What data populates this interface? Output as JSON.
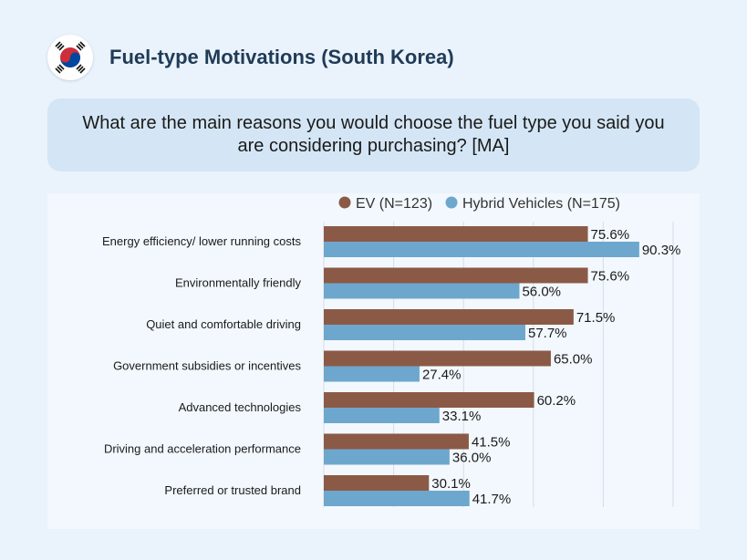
{
  "header": {
    "title": "Fuel-type Motivations (South Korea)",
    "flag_icon": "south-korea-flag-icon"
  },
  "question": {
    "text": "What are the main reasons you would choose the fuel type you said you are considering purchasing? [MA]"
  },
  "colors": {
    "ev": "#8b5a47",
    "hybrid": "#6ea7cd",
    "page_bg": "#eaf3fc",
    "panel_bg": "#f2f8fd",
    "question_bg": "#d4e6f5"
  },
  "chart_data": {
    "type": "bar",
    "orientation": "horizontal",
    "categories": [
      "Energy efficiency/ lower running costs",
      "Environmentally friendly",
      "Quiet and comfortable driving",
      "Government subsidies or incentives",
      "Advanced technologies",
      "Driving and acceleration performance",
      "Preferred or trusted brand"
    ],
    "series": [
      {
        "name": "EV (N=123)",
        "values": [
          75.6,
          75.6,
          71.5,
          65.0,
          60.2,
          41.5,
          30.1
        ],
        "color": "#8b5a47"
      },
      {
        "name": "Hybrid Vehicles (N=175)",
        "values": [
          90.3,
          56.0,
          57.7,
          27.4,
          33.1,
          36.0,
          41.7
        ],
        "color": "#6ea7cd"
      }
    ],
    "value_suffix": "%",
    "xlim": [
      0,
      100
    ],
    "grid": true,
    "legend": "top"
  }
}
